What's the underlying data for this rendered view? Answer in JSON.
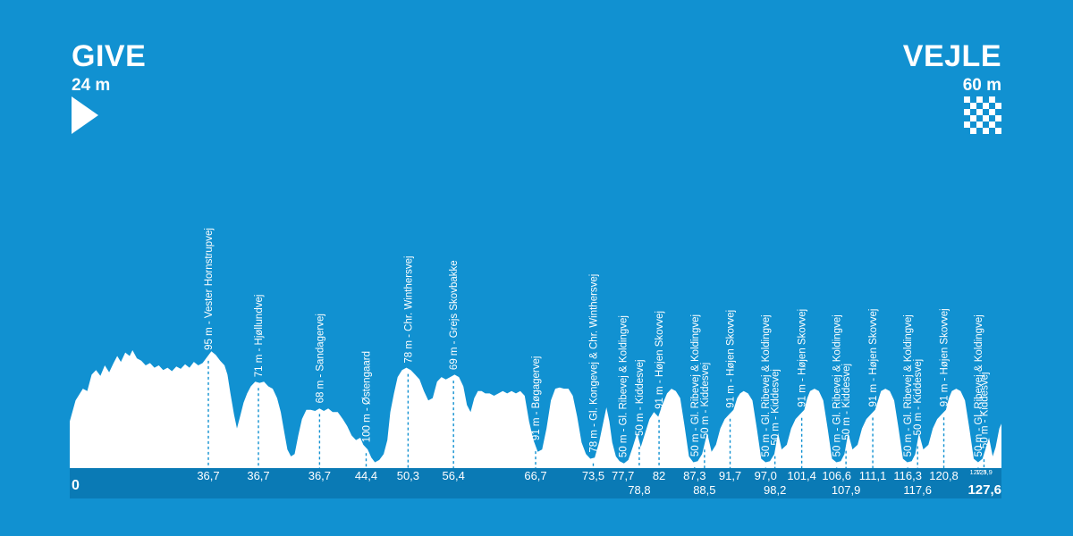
{
  "header": {
    "start": {
      "city": "GIVE",
      "elevation": "24 m",
      "icon": "start-triangle-icon"
    },
    "finish": {
      "city": "VEJLE",
      "elevation": "60 m",
      "icon": "checkered-flag-icon"
    }
  },
  "colors": {
    "background": "#1191d1",
    "axis_band": "#0a7ab5",
    "profile_fill": "#ffffff",
    "marker_line": "#1191d1"
  },
  "chart_data": {
    "type": "area",
    "xlim": [
      0,
      127.6
    ],
    "x_unit": "km",
    "start_label": "0",
    "finish_label": "127,6",
    "profile": [
      [
        0,
        40
      ],
      [
        0.8,
        58
      ],
      [
        1.8,
        68
      ],
      [
        2.4,
        66
      ],
      [
        3.0,
        80
      ],
      [
        3.6,
        84
      ],
      [
        4.2,
        79
      ],
      [
        4.8,
        88
      ],
      [
        5.4,
        82
      ],
      [
        6.0,
        90
      ],
      [
        6.5,
        96
      ],
      [
        7.0,
        91
      ],
      [
        7.6,
        99
      ],
      [
        8.2,
        96
      ],
      [
        8.6,
        101
      ],
      [
        9.2,
        94
      ],
      [
        9.8,
        92
      ],
      [
        10.4,
        88
      ],
      [
        11.0,
        90
      ],
      [
        11.6,
        86
      ],
      [
        12.2,
        88
      ],
      [
        12.8,
        84
      ],
      [
        13.4,
        86
      ],
      [
        14.0,
        83
      ],
      [
        14.6,
        87
      ],
      [
        15.2,
        85
      ],
      [
        15.8,
        89
      ],
      [
        16.4,
        86
      ],
      [
        17.0,
        91
      ],
      [
        17.6,
        88
      ],
      [
        18.2,
        90
      ],
      [
        18.8,
        95
      ],
      [
        19.4,
        100
      ],
      [
        20.0,
        97
      ],
      [
        20.6,
        92
      ],
      [
        21.2,
        88
      ],
      [
        21.6,
        80
      ],
      [
        22.0,
        64
      ],
      [
        22.5,
        46
      ],
      [
        22.9,
        34
      ],
      [
        23.4,
        46
      ],
      [
        23.8,
        56
      ],
      [
        24.3,
        64
      ],
      [
        24.8,
        70
      ],
      [
        25.4,
        74
      ],
      [
        26.0,
        73
      ],
      [
        26.6,
        74
      ],
      [
        27.2,
        70
      ],
      [
        27.8,
        68
      ],
      [
        28.4,
        60
      ],
      [
        28.9,
        48
      ],
      [
        29.4,
        30
      ],
      [
        29.8,
        16
      ],
      [
        30.3,
        10
      ],
      [
        30.8,
        12
      ],
      [
        31.3,
        28
      ],
      [
        31.8,
        42
      ],
      [
        32.4,
        50
      ],
      [
        33.0,
        50
      ],
      [
        33.6,
        49
      ],
      [
        34.2,
        51
      ],
      [
        34.8,
        49
      ],
      [
        35.4,
        51
      ],
      [
        36.0,
        48
      ],
      [
        36.7,
        48
      ],
      [
        37.4,
        42
      ],
      [
        38.0,
        36
      ],
      [
        38.6,
        28
      ],
      [
        39.2,
        24
      ],
      [
        39.8,
        26
      ],
      [
        40.2,
        20
      ],
      [
        40.8,
        16
      ],
      [
        41.3,
        9
      ],
      [
        41.8,
        5
      ],
      [
        42.4,
        7
      ],
      [
        43.0,
        12
      ],
      [
        43.5,
        24
      ],
      [
        43.9,
        48
      ],
      [
        44.4,
        64
      ],
      [
        44.9,
        78
      ],
      [
        45.5,
        84
      ],
      [
        46.1,
        86
      ],
      [
        46.7,
        84
      ],
      [
        47.3,
        80
      ],
      [
        47.9,
        76
      ],
      [
        48.5,
        66
      ],
      [
        49.1,
        58
      ],
      [
        49.7,
        60
      ],
      [
        50.3,
        74
      ],
      [
        50.9,
        78
      ],
      [
        51.5,
        76
      ],
      [
        52.1,
        78
      ],
      [
        52.7,
        80
      ],
      [
        53.3,
        78
      ],
      [
        53.9,
        70
      ],
      [
        54.4,
        54
      ],
      [
        54.9,
        48
      ],
      [
        55.4,
        60
      ],
      [
        55.9,
        66
      ],
      [
        56.4,
        66
      ],
      [
        56.9,
        64
      ],
      [
        57.5,
        64
      ],
      [
        58.1,
        62
      ],
      [
        58.7,
        64
      ],
      [
        59.3,
        66
      ],
      [
        59.9,
        64
      ],
      [
        60.5,
        66
      ],
      [
        61.1,
        64
      ],
      [
        61.7,
        66
      ],
      [
        62.3,
        62
      ],
      [
        62.9,
        40
      ],
      [
        63.5,
        24
      ],
      [
        64.1,
        14
      ],
      [
        64.7,
        16
      ],
      [
        65.3,
        34
      ],
      [
        65.9,
        58
      ],
      [
        66.5,
        68
      ],
      [
        67.1,
        69
      ],
      [
        67.7,
        68
      ],
      [
        68.3,
        68
      ],
      [
        68.9,
        62
      ],
      [
        69.5,
        44
      ],
      [
        70.1,
        22
      ],
      [
        70.7,
        12
      ],
      [
        71.3,
        8
      ],
      [
        71.9,
        9
      ],
      [
        72.5,
        22
      ],
      [
        73.1,
        40
      ],
      [
        73.5,
        52
      ],
      [
        73.9,
        40
      ],
      [
        74.3,
        22
      ],
      [
        74.8,
        10
      ],
      [
        75.3,
        6
      ],
      [
        75.9,
        4
      ],
      [
        76.5,
        7
      ],
      [
        77.1,
        18
      ],
      [
        77.7,
        30
      ],
      [
        78.2,
        18
      ],
      [
        78.8,
        30
      ],
      [
        79.4,
        42
      ],
      [
        80.0,
        48
      ],
      [
        80.6,
        44
      ],
      [
        81.2,
        55
      ],
      [
        81.8,
        64
      ],
      [
        82.4,
        68
      ],
      [
        83.0,
        66
      ],
      [
        83.6,
        60
      ],
      [
        84.2,
        36
      ],
      [
        84.8,
        10
      ],
      [
        85.4,
        5
      ],
      [
        86.0,
        6
      ],
      [
        86.6,
        12
      ],
      [
        87.3,
        30
      ],
      [
        87.9,
        14
      ],
      [
        88.5,
        20
      ],
      [
        89.1,
        34
      ],
      [
        89.7,
        42
      ],
      [
        90.3,
        46
      ],
      [
        90.9,
        50
      ],
      [
        91.4,
        60
      ],
      [
        91.8,
        64
      ],
      [
        92.3,
        66
      ],
      [
        92.9,
        64
      ],
      [
        93.5,
        58
      ],
      [
        94.1,
        34
      ],
      [
        94.7,
        8
      ],
      [
        95.3,
        5
      ],
      [
        95.9,
        6
      ],
      [
        96.5,
        12
      ],
      [
        97.0,
        30
      ],
      [
        97.5,
        16
      ],
      [
        98.2,
        20
      ],
      [
        98.8,
        34
      ],
      [
        99.4,
        42
      ],
      [
        100.0,
        46
      ],
      [
        100.6,
        50
      ],
      [
        101.0,
        60
      ],
      [
        101.4,
        66
      ],
      [
        102.0,
        68
      ],
      [
        102.6,
        66
      ],
      [
        103.2,
        58
      ],
      [
        103.8,
        34
      ],
      [
        104.4,
        8
      ],
      [
        105.0,
        5
      ],
      [
        105.6,
        6
      ],
      [
        106.1,
        12
      ],
      [
        106.6,
        30
      ],
      [
        107.2,
        16
      ],
      [
        107.9,
        20
      ],
      [
        108.5,
        34
      ],
      [
        109.1,
        42
      ],
      [
        109.7,
        46
      ],
      [
        110.3,
        50
      ],
      [
        110.8,
        60
      ],
      [
        111.1,
        66
      ],
      [
        111.7,
        68
      ],
      [
        112.3,
        66
      ],
      [
        112.9,
        58
      ],
      [
        113.5,
        34
      ],
      [
        114.1,
        8
      ],
      [
        114.7,
        5
      ],
      [
        115.3,
        6
      ],
      [
        115.8,
        12
      ],
      [
        116.3,
        30
      ],
      [
        116.9,
        16
      ],
      [
        117.6,
        20
      ],
      [
        118.2,
        34
      ],
      [
        118.8,
        42
      ],
      [
        119.4,
        46
      ],
      [
        120.0,
        50
      ],
      [
        120.4,
        60
      ],
      [
        120.8,
        66
      ],
      [
        121.4,
        68
      ],
      [
        122.0,
        66
      ],
      [
        122.6,
        58
      ],
      [
        123.2,
        34
      ],
      [
        123.8,
        8
      ],
      [
        124.4,
        5
      ],
      [
        125.0,
        8
      ],
      [
        125.9,
        26
      ],
      [
        126.4,
        10
      ],
      [
        126.8,
        18
      ],
      [
        127.3,
        34
      ],
      [
        127.6,
        38
      ]
    ],
    "markers": [
      {
        "label": "95 m - Vester Hornstrupvej",
        "km": 23.8,
        "tick": "36,7",
        "row": 1
      },
      {
        "label": "71 m - Hjøllundvej",
        "km": 32.4,
        "tick": "36,7",
        "row": 1
      },
      {
        "label": "68 m - Sandagervej",
        "km": 42.9,
        "tick": "36,7",
        "row": 1
      },
      {
        "label": "100 m - Østengaard",
        "km": 50.9,
        "tick": "44,4",
        "row": 1
      },
      {
        "label": "78 m - Chr. Winthersvej",
        "km": 58.1,
        "tick": "50,3",
        "row": 1
      },
      {
        "label": "69 m - Grejs Skovbakke",
        "km": 65.9,
        "tick": "56,4",
        "row": 1
      },
      {
        "label": "91 m - Bøgagervej",
        "km": 80.0,
        "tick": "66,7",
        "row": 1
      },
      {
        "label": "78 m - Gl. Kongevej & Chr. Winthersvej",
        "km": 89.9,
        "tick": "73,5",
        "row": 1
      },
      {
        "label": "50 m - Gl. Ribevej & Koldingvej",
        "km": 95.0,
        "tick": "77,7",
        "row": 1
      },
      {
        "label": "50 m - Kiddesvej",
        "km": 97.8,
        "tick": "78,8",
        "row": 2
      },
      {
        "label": "91 m - Højen Skovvej",
        "km": 101.2,
        "tick": "82",
        "row": 1
      },
      {
        "label": "50 m - Gl. Ribevej & Koldingvej",
        "km": 107.3,
        "tick": "87,3",
        "row": 1
      },
      {
        "label": "50 m - Kiddesvej",
        "km": 109.0,
        "tick": "88,5",
        "row": 2
      },
      {
        "label": "91 m - Højen Skovvej",
        "km": 113.4,
        "tick": "91,7",
        "row": 1
      },
      {
        "label": "50 m - Gl. Ribevej & Koldingvej",
        "km": 119.5,
        "tick": "97,0",
        "row": 1
      },
      {
        "label": "50 m - Kiddesvej",
        "km": 121.1,
        "tick": "98,2",
        "row": 2
      },
      {
        "label": "91 m - Højen Skovvej",
        "km": 125.7,
        "tick": "101,4",
        "row": 1
      },
      {
        "label": "50 m - Gl. Ribevej & Koldingvej",
        "km": 131.7,
        "tick": "106,6",
        "row": 1
      },
      {
        "label": "50 m - Kiddesvej",
        "km": 133.3,
        "tick": "107,9",
        "row": 2
      },
      {
        "label": "91 m - Højen Skovvej",
        "km": 137.9,
        "tick": "111,1",
        "row": 1
      },
      {
        "label": "50 m - Gl. Ribevej & Koldingvej",
        "km": 143.9,
        "tick": "116,3",
        "row": 1
      },
      {
        "label": "50 m - Kiddesvej",
        "km": 145.6,
        "tick": "117,6",
        "row": 2
      },
      {
        "label": "91 m - Højen Skovvej",
        "km": 150.1,
        "tick": "120,8",
        "row": 1
      },
      {
        "label": "50 m - Gl. Ribevej & Koldingvej",
        "km": 156.0,
        "tick": "127,3",
        "row": 0
      },
      {
        "label": "50 m - Kiddesvej",
        "km": 157.0,
        "tick": "125,9",
        "row": 0
      }
    ]
  }
}
